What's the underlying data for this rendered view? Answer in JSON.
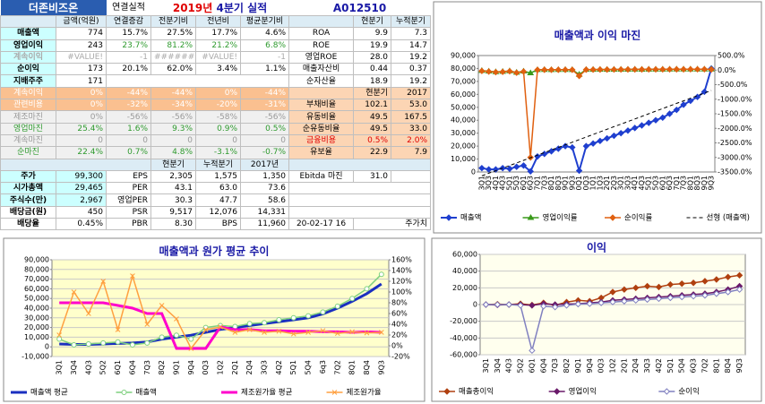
{
  "header": {
    "company": "더존비즈온",
    "basis": "연결실적",
    "year": "2019년",
    "period": "4분기 실적",
    "code": "A012510"
  },
  "table": {
    "rows": [
      [
        "금액(억원)",
        "연결증감",
        "전분기비",
        "전년비",
        "평균분기비",
        "현분기",
        "누적분기"
      ],
      [
        "매출액",
        "774",
        "15.7%",
        "27.5%",
        "17.7%",
        "4.6%",
        "ROA",
        "9.9",
        "7.3"
      ],
      [
        "영업이익",
        "243",
        "23.7%",
        "81.2%",
        "21.2%",
        "6.8%",
        "ROE",
        "19.9",
        "14.7"
      ],
      [
        "계속이익",
        "#VALUE!",
        "-1",
        "########",
        "#VALUE!",
        "-1",
        "영업ROE",
        "28.0",
        "19.2"
      ],
      [
        "순이익",
        "173",
        "20.1%",
        "62.0%",
        "3.4%",
        "1.1%",
        "매출자산비",
        "0.44",
        "0.37"
      ],
      [
        "지배주주",
        "171",
        "순자산율",
        "18.9",
        "19.2"
      ],
      [
        "계속이익",
        "0%",
        "-44%",
        "-44%",
        "0%",
        "-44%",
        "현분기",
        "2017"
      ],
      [
        "관련비용",
        "0%",
        "-32%",
        "-34%",
        "-20%",
        "-31%",
        "부채비율",
        "102.1",
        "53.0"
      ],
      [
        "제조마진",
        "0%",
        "-56%",
        "-56%",
        "-58%",
        "-56%",
        "유동비율",
        "49.5",
        "167.5"
      ],
      [
        "영업마진",
        "25.4%",
        "1.6%",
        "9.3%",
        "0.9%",
        "0.5%",
        "순유동비율",
        "49.5",
        "33.0"
      ],
      [
        "계속마진",
        "0",
        "0",
        "0",
        "0",
        "0",
        "금융비용",
        "0.5%",
        "2.0%"
      ],
      [
        "순마진",
        "22.4%",
        "0.7%",
        "4.8%",
        "-3.1%",
        "-0.7%",
        "유보율",
        "22.9",
        "7.9"
      ],
      [
        "현분기",
        "누적분기",
        "2017년"
      ],
      [
        "주가",
        "99,300",
        "EPS",
        "2,305",
        "1,575",
        "1,350",
        "Ebitda 마진",
        "31.0"
      ],
      [
        "시가총액",
        "29,465",
        "PER",
        "43.1",
        "63.0",
        "73.6"
      ],
      [
        "주식수(만)",
        "2,967",
        "영업PER",
        "30.3",
        "47.7",
        "58.6"
      ],
      [
        "배당금(원)",
        "450",
        "PSR",
        "9,517",
        "12,076",
        "14,331"
      ],
      [
        "배당율",
        "0.45%",
        "PBR",
        "8.30",
        "BPS",
        "11,960",
        "20-02-17 16",
        "주가치"
      ]
    ]
  },
  "chart_data": [
    {
      "type": "line",
      "title": "매출액과 이익 마진",
      "categories": [
        "3Q1",
        "3Q3",
        "4Q1",
        "4Q3",
        "5Q1",
        "5Q3",
        "6Q1",
        "6Q3",
        "7Q1",
        "7Q3",
        "8Q1",
        "8Q3",
        "9Q1",
        "9Q3",
        "0Q1",
        "0Q3",
        "1Q1",
        "1Q3",
        "2Q1",
        "2Q3",
        "3Q1",
        "3Q3",
        "4Q1",
        "4Q3",
        "5Q1",
        "5Q3",
        "6Q1",
        "6Q3",
        "7Q1",
        "7Q3",
        "8Q1",
        "8Q3",
        "9Q1",
        "9Q3"
      ],
      "series": [
        {
          "name": "매출액",
          "color": "#1f3fcf",
          "marker": "diamond",
          "line_width": 2,
          "values": [
            3000,
            2000,
            2000,
            3000,
            2500,
            4000,
            5000,
            500,
            12000,
            14000,
            16000,
            18000,
            20000,
            19000,
            1000,
            20000,
            22000,
            24000,
            26000,
            28000,
            30000,
            32000,
            34000,
            36000,
            38000,
            40000,
            42000,
            45000,
            48000,
            52000,
            55000,
            58000,
            62000,
            80000
          ]
        },
        {
          "name": "영업이익률",
          "color": "#3a9a1a",
          "marker": "triangle",
          "line_width": 1.5,
          "axis": "y2",
          "values": [
            -20,
            -40,
            -60,
            -50,
            -30,
            -80,
            -40,
            -100,
            10,
            15,
            12,
            14,
            15,
            12,
            -150,
            18,
            20,
            22,
            21,
            23,
            24,
            25,
            26,
            25,
            27,
            28,
            28,
            29,
            30,
            30,
            31,
            31,
            32,
            31
          ]
        },
        {
          "name": "순이익률",
          "color": "#e06010",
          "marker": "diamond",
          "line_width": 1.5,
          "axis": "y2",
          "values": [
            -30,
            -50,
            -70,
            -60,
            -40,
            -90,
            -50,
            -3000,
            8,
            12,
            10,
            11,
            12,
            10,
            -200,
            15,
            17,
            19,
            18,
            20,
            21,
            22,
            23,
            22,
            24,
            25,
            25,
            26,
            27,
            27,
            28,
            28,
            29,
            22
          ]
        },
        {
          "name": "선형 (매출액)",
          "color": "#000000",
          "marker": "none",
          "line_width": 1,
          "line_style": "dashed",
          "values": [
            -3000,
            -1000,
            1000,
            3000,
            5000,
            7000,
            9000,
            11000,
            13000,
            15000,
            17000,
            19000,
            21000,
            23000,
            25000,
            27000,
            29000,
            31000,
            33000,
            35000,
            37000,
            39000,
            41000,
            43000,
            45000,
            47000,
            49000,
            51000,
            53000,
            55000,
            57000,
            59000,
            61000,
            63000
          ]
        }
      ],
      "ylim": [
        0,
        90000
      ],
      "yticks": [
        0,
        {
          "value": 10000,
          "label": "10,000"
        },
        {
          "value": 20000,
          "label": "20,000"
        },
        {
          "value": 30000,
          "label": "30,000"
        },
        {
          "value": 40000,
          "label": "40,000"
        },
        {
          "value": 50000,
          "label": "50,000"
        },
        {
          "value": 60000,
          "label": "60,000"
        },
        {
          "value": 70000,
          "label": "70,000"
        },
        {
          "value": 80000,
          "label": "80,000"
        },
        {
          "value": 90000,
          "label": "90,000"
        }
      ],
      "y2lim": [
        -3500,
        500
      ],
      "y2ticks": [
        {
          "value": 500,
          "label": "500.0%"
        },
        {
          "value": 0,
          "label": "0.0%"
        },
        {
          "value": -500,
          "label": "-500.0%"
        },
        {
          "value": -1000,
          "label": "-1000.0%"
        },
        {
          "value": -1500,
          "label": "-1500.0%"
        },
        {
          "value": -2000,
          "label": "-2000.0%"
        },
        {
          "value": -2500,
          "label": "-2500.0%"
        },
        {
          "value": -3000,
          "label": "-3000.0%"
        },
        {
          "value": -3500,
          "label": "-3500.0%"
        }
      ],
      "grid": false,
      "legend": "bottom"
    },
    {
      "type": "line",
      "title": "매출액과 원가 평균 추이",
      "categories": [
        "3Q1",
        "3Q4",
        "4Q3",
        "5Q2",
        "6Q1",
        "6Q4",
        "7Q3",
        "8Q2",
        "9Q1",
        "9Q4",
        "0Q3",
        "1Q2",
        "2Q1",
        "2Q4",
        "3Q3",
        "4Q2",
        "5Q1",
        "5Q4",
        "6q3",
        "7Q2",
        "8Q1",
        "8Q4",
        "9Q3"
      ],
      "series": [
        {
          "name": "매출액 평균",
          "color": "#1a2fc0",
          "marker": "none",
          "line_width": 3,
          "values": [
            3000,
            2500,
            2500,
            3000,
            3500,
            4000,
            5000,
            8000,
            10000,
            12000,
            15000,
            18000,
            20000,
            22000,
            24000,
            26000,
            28000,
            30000,
            34000,
            40000,
            47000,
            55000,
            65000
          ]
        },
        {
          "name": "매출액",
          "color": "#7fd07f",
          "marker": "circle",
          "line_width": 1.5,
          "values": [
            8000,
            2000,
            3000,
            4000,
            5000,
            2000,
            4000,
            10000,
            12000,
            8000,
            20000,
            22000,
            21000,
            24000,
            25000,
            28000,
            30000,
            32000,
            36000,
            42000,
            50000,
            60000,
            75000
          ]
        },
        {
          "name": "제조원가율 평균",
          "color": "#ff00cc",
          "marker": "none",
          "line_width": 3,
          "axis": "y2",
          "values": [
            80,
            80,
            80,
            80,
            75,
            70,
            60,
            60,
            -5,
            -5,
            -5,
            35,
            30,
            30,
            28,
            28,
            27,
            27,
            26,
            26,
            25,
            26,
            25
          ]
        },
        {
          "name": "제조원가율",
          "color": "#ffa040",
          "marker": "cross",
          "line_width": 1.5,
          "axis": "y2",
          "values": [
            20,
            100,
            60,
            120,
            30,
            130,
            40,
            75,
            50,
            -5,
            30,
            35,
            25,
            30,
            25,
            27,
            22,
            25,
            28,
            23,
            26,
            24,
            25
          ]
        }
      ],
      "ylim": [
        -10000,
        90000
      ],
      "yticks": [
        {
          "value": -10000,
          "label": "-10,000"
        },
        0,
        {
          "value": 10000,
          "label": "10,000"
        },
        {
          "value": 20000,
          "label": "20,000"
        },
        {
          "value": 30000,
          "label": "30,000"
        },
        {
          "value": 40000,
          "label": "40,000"
        },
        {
          "value": 50000,
          "label": "50,000"
        },
        {
          "value": 60000,
          "label": "60,000"
        },
        {
          "value": 70000,
          "label": "70,000"
        },
        {
          "value": 80000,
          "label": "80,000"
        },
        {
          "value": 90000,
          "label": "90,000"
        }
      ],
      "y2lim": [
        -20,
        160
      ],
      "y2ticks": [
        {
          "value": -20,
          "label": "-20%"
        },
        {
          "value": 0,
          "label": "0%"
        },
        {
          "value": 20,
          "label": "20%"
        },
        {
          "value": 40,
          "label": "40%"
        },
        {
          "value": 60,
          "label": "60%"
        },
        {
          "value": 80,
          "label": "80%"
        },
        {
          "value": 100,
          "label": "100%"
        },
        {
          "value": 120,
          "label": "120%"
        },
        {
          "value": 140,
          "label": "140%"
        },
        {
          "value": 160,
          "label": "160%"
        }
      ],
      "grid": true,
      "legend": "bottom"
    },
    {
      "type": "line",
      "title": "이익",
      "categories": [
        "3Q1",
        "3Q4",
        "4Q3",
        "5Q2",
        "6Q1",
        "6Q4",
        "7Q3",
        "8Q2",
        "9Q1",
        "9Q4",
        "0Q3",
        "1Q2",
        "2Q1",
        "2Q4",
        "3Q3",
        "4Q2",
        "5Q1",
        "5Q4",
        "6Q3",
        "7Q2",
        "8Q1",
        "8Q4",
        "9Q3"
      ],
      "series": [
        {
          "name": "매출총이익",
          "color": "#b04010",
          "marker": "diamond",
          "line_width": 1.5,
          "values": [
            0,
            500,
            0,
            1000,
            -500,
            2000,
            -1000,
            3000,
            5000,
            4000,
            8000,
            15000,
            18000,
            20000,
            22000,
            21000,
            24000,
            25000,
            26000,
            28000,
            30000,
            33000,
            35000
          ]
        },
        {
          "name": "영업이익",
          "color": "#6a1a6a",
          "marker": "diamond",
          "line_width": 1.5,
          "values": [
            0,
            -500,
            0,
            0,
            -1000,
            1000,
            0,
            500,
            1000,
            2000,
            3000,
            5000,
            6000,
            7000,
            8000,
            9000,
            10000,
            11000,
            12000,
            13000,
            15000,
            18000,
            22000
          ]
        },
        {
          "name": "순이익",
          "color": "#8080c0",
          "marker": "open-diamond",
          "line_width": 1.5,
          "values": [
            0,
            0,
            0,
            -1000,
            -55000,
            -2000,
            -3000,
            -1000,
            500,
            1000,
            2000,
            3000,
            4000,
            5000,
            6000,
            7000,
            8000,
            9000,
            10000,
            11000,
            13000,
            15000,
            18000
          ]
        }
      ],
      "ylim": [
        -60000,
        60000
      ],
      "yticks": [
        {
          "value": -60000,
          "label": "-60,000"
        },
        {
          "value": -40000,
          "label": "-40,000"
        },
        {
          "value": -20000,
          "label": "-20,000"
        },
        0,
        {
          "value": 20000,
          "label": "20,000"
        },
        {
          "value": 40000,
          "label": "40,000"
        },
        {
          "value": 60000,
          "label": "60,000"
        }
      ],
      "grid": true,
      "legend": "bottom"
    }
  ]
}
